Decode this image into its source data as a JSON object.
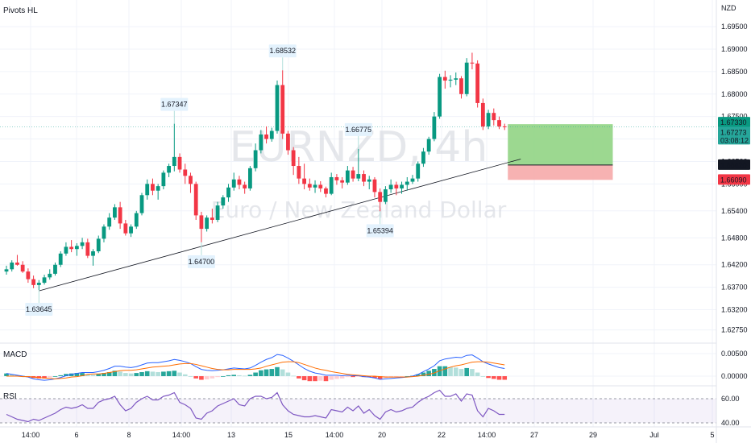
{
  "chart_data": {
    "type": "candlestick",
    "symbol": "EURNZD, 4h",
    "symbol_name": "Euro / New Zealand Dollar",
    "currency": "NZD",
    "indicator_label": "Pivots HL",
    "price_range": [
      1.626,
      1.6995
    ],
    "y_ticks": [
      "1.69500",
      "1.69000",
      "1.68500",
      "1.68000",
      "1.67500",
      "1.67000",
      "1.66500",
      "1.66000",
      "1.65400",
      "1.64800",
      "1.64200",
      "1.63700",
      "1.63200",
      "1.62750"
    ],
    "x_ticks": [
      "14:00",
      "6",
      "8",
      "14:00",
      "13",
      "15",
      "14:00",
      "20",
      "22",
      "14:00",
      "27",
      "29",
      "Jul",
      "5"
    ],
    "candles": [
      [
        1.6405,
        1.6418,
        1.6398,
        1.641
      ],
      [
        1.641,
        1.643,
        1.6405,
        1.6425
      ],
      [
        1.6425,
        1.6442,
        1.6418,
        1.642
      ],
      [
        1.642,
        1.6428,
        1.6402,
        1.6405
      ],
      [
        1.6405,
        1.6412,
        1.638,
        1.6388
      ],
      [
        1.6388,
        1.6396,
        1.6368,
        1.6375
      ],
      [
        1.6375,
        1.6386,
        1.6364,
        1.638
      ],
      [
        1.638,
        1.6398,
        1.6376,
        1.6392
      ],
      [
        1.6392,
        1.641,
        1.6387,
        1.64
      ],
      [
        1.64,
        1.6425,
        1.6396,
        1.642
      ],
      [
        1.642,
        1.645,
        1.6415,
        1.6445
      ],
      [
        1.6445,
        1.647,
        1.644,
        1.646
      ],
      [
        1.646,
        1.6475,
        1.6448,
        1.6455
      ],
      [
        1.6455,
        1.6468,
        1.644,
        1.6462
      ],
      [
        1.6462,
        1.648,
        1.6455,
        1.647
      ],
      [
        1.647,
        1.6478,
        1.6435,
        1.644
      ],
      [
        1.644,
        1.6455,
        1.6418,
        1.645
      ],
      [
        1.645,
        1.6485,
        1.6446,
        1.6478
      ],
      [
        1.6478,
        1.651,
        1.647,
        1.6505
      ],
      [
        1.6505,
        1.6535,
        1.6498,
        1.6525
      ],
      [
        1.6525,
        1.6555,
        1.652,
        1.6548
      ],
      [
        1.6548,
        1.656,
        1.65,
        1.6512
      ],
      [
        1.6512,
        1.652,
        1.6485,
        1.649
      ],
      [
        1.649,
        1.651,
        1.6482,
        1.6505
      ],
      [
        1.6505,
        1.654,
        1.65,
        1.6535
      ],
      [
        1.6535,
        1.658,
        1.653,
        1.6575
      ],
      [
        1.6575,
        1.661,
        1.6565,
        1.66
      ],
      [
        1.66,
        1.6612,
        1.6575,
        1.6585
      ],
      [
        1.6585,
        1.66,
        1.6565,
        1.6595
      ],
      [
        1.6595,
        1.663,
        1.6588,
        1.6625
      ],
      [
        1.6625,
        1.6645,
        1.6615,
        1.664
      ],
      [
        1.664,
        1.6734,
        1.6628,
        1.666
      ],
      [
        1.666,
        1.6668,
        1.6625,
        1.6632
      ],
      [
        1.6632,
        1.6645,
        1.66,
        1.6618
      ],
      [
        1.6618,
        1.6625,
        1.658,
        1.66
      ],
      [
        1.66,
        1.6605,
        1.652,
        1.653
      ],
      [
        1.653,
        1.6538,
        1.647,
        1.65
      ],
      [
        1.65,
        1.653,
        1.6494,
        1.6525
      ],
      [
        1.6525,
        1.6545,
        1.6512,
        1.652
      ],
      [
        1.652,
        1.656,
        1.6515,
        1.6552
      ],
      [
        1.6552,
        1.6575,
        1.6545,
        1.657
      ],
      [
        1.657,
        1.66,
        1.656,
        1.6592
      ],
      [
        1.6592,
        1.6625,
        1.6585,
        1.661
      ],
      [
        1.661,
        1.6618,
        1.6588,
        1.6598
      ],
      [
        1.6598,
        1.6605,
        1.6578,
        1.659
      ],
      [
        1.659,
        1.664,
        1.6585,
        1.6635
      ],
      [
        1.6635,
        1.669,
        1.6628,
        1.6675
      ],
      [
        1.6675,
        1.672,
        1.6668,
        1.671
      ],
      [
        1.671,
        1.6728,
        1.669,
        1.67
      ],
      [
        1.67,
        1.6725,
        1.6694,
        1.6718
      ],
      [
        1.6718,
        1.683,
        1.6712,
        1.682
      ],
      [
        1.682,
        1.6853,
        1.67,
        1.6712
      ],
      [
        1.6712,
        1.6718,
        1.6665,
        1.6675
      ],
      [
        1.6675,
        1.6682,
        1.662,
        1.664
      ],
      [
        1.664,
        1.666,
        1.66,
        1.6612
      ],
      [
        1.6612,
        1.6645,
        1.6588,
        1.66
      ],
      [
        1.66,
        1.6612,
        1.6585,
        1.6592
      ],
      [
        1.6592,
        1.6608,
        1.658,
        1.6598
      ],
      [
        1.6598,
        1.6606,
        1.6582,
        1.659
      ],
      [
        1.659,
        1.6594,
        1.657,
        1.6578
      ],
      [
        1.6578,
        1.6625,
        1.6575,
        1.6615
      ],
      [
        1.6615,
        1.6622,
        1.6598,
        1.6608
      ],
      [
        1.6608,
        1.6615,
        1.659,
        1.6603
      ],
      [
        1.6603,
        1.664,
        1.6598,
        1.663
      ],
      [
        1.663,
        1.6638,
        1.6605,
        1.6612
      ],
      [
        1.6612,
        1.6678,
        1.6606,
        1.6622
      ],
      [
        1.6622,
        1.663,
        1.6595,
        1.6605
      ],
      [
        1.6605,
        1.6618,
        1.6588,
        1.661
      ],
      [
        1.661,
        1.6615,
        1.657,
        1.6582
      ],
      [
        1.6582,
        1.659,
        1.6539,
        1.656
      ],
      [
        1.656,
        1.6595,
        1.6555,
        1.6588
      ],
      [
        1.6588,
        1.661,
        1.658,
        1.6598
      ],
      [
        1.6598,
        1.6605,
        1.6575,
        1.659
      ],
      [
        1.659,
        1.6605,
        1.6578,
        1.6598
      ],
      [
        1.6598,
        1.6615,
        1.6585,
        1.6605
      ],
      [
        1.6605,
        1.662,
        1.66,
        1.6612
      ],
      [
        1.6612,
        1.665,
        1.6605,
        1.6645
      ],
      [
        1.6645,
        1.668,
        1.6638,
        1.6672
      ],
      [
        1.6672,
        1.6705,
        1.6665,
        1.67
      ],
      [
        1.67,
        1.676,
        1.6695,
        1.675
      ],
      [
        1.675,
        1.6845,
        1.6745,
        1.6838
      ],
      [
        1.6838,
        1.6852,
        1.6812,
        1.683
      ],
      [
        1.683,
        1.6842,
        1.6815,
        1.6832
      ],
      [
        1.6832,
        1.6848,
        1.682,
        1.6835
      ],
      [
        1.6835,
        1.684,
        1.679,
        1.68
      ],
      [
        1.68,
        1.688,
        1.6795,
        1.687
      ],
      [
        1.687,
        1.6892,
        1.6855,
        1.6868
      ],
      [
        1.6868,
        1.6875,
        1.677,
        1.678
      ],
      [
        1.678,
        1.679,
        1.672,
        1.6728
      ],
      [
        1.6728,
        1.6765,
        1.6722,
        1.6758
      ],
      [
        1.6758,
        1.6768,
        1.673,
        1.6742
      ],
      [
        1.6742,
        1.675,
        1.6722,
        1.6728
      ],
      [
        1.6728,
        1.6734,
        1.672,
        1.6727
      ]
    ],
    "pivots": [
      {
        "label": "1.63645",
        "index": 6,
        "type": "low"
      },
      {
        "label": "1.67347",
        "index": 31,
        "type": "high"
      },
      {
        "label": "1.64700",
        "index": 36,
        "type": "low"
      },
      {
        "label": "1.68532",
        "index": 51,
        "type": "high"
      },
      {
        "label": "1.66775",
        "index": 65,
        "type": "high"
      },
      {
        "label": "1.65394",
        "index": 69,
        "type": "low"
      }
    ],
    "trendline": {
      "from": [
        6,
        1.6362
      ],
      "to": [
        92,
        1.665
      ]
    },
    "position": {
      "entry": 1.6642,
      "target": 1.6733,
      "stop": 1.6609,
      "start_index": 92,
      "end_index": 109
    },
    "price_badges": [
      {
        "text": "1.67330",
        "price": 1.6733,
        "color": "#089981"
      },
      {
        "text": "1.67273",
        "price": 1.67273,
        "color": "#26a69a",
        "sub": "03:08:12"
      },
      {
        "text": "1.66420",
        "price": 1.6642,
        "color": "#131722"
      },
      {
        "text": "1.66090",
        "price": 1.6609,
        "color": "#f23645"
      }
    ],
    "macd": {
      "label": "MACD",
      "y_ticks": [
        "0.00500",
        "0.00000"
      ],
      "range": [
        -0.0016,
        0.0066
      ],
      "histogram": [
        0.0006,
        0.0004,
        0.0002,
        0.0001,
        -0.0001,
        -0.0004,
        -0.0005,
        -0.0005,
        -0.0003,
        0.0,
        0.0002,
        0.0005,
        0.0006,
        0.0007,
        0.0007,
        0.0004,
        0.0003,
        0.0005,
        0.0007,
        0.0009,
        0.0012,
        0.001,
        0.0007,
        0.0006,
        0.0007,
        0.0009,
        0.0011,
        0.001,
        0.0009,
        0.001,
        0.0011,
        0.0012,
        0.0008,
        0.0004,
        0.0,
        -0.0005,
        -0.0008,
        -0.0007,
        -0.0005,
        -0.0002,
        0.0,
        0.0002,
        0.0003,
        0.0002,
        0.0001,
        0.0003,
        0.0008,
        0.0013,
        0.0015,
        0.0016,
        0.002,
        0.0015,
        0.0008,
        0.0001,
        -0.0005,
        -0.0009,
        -0.0011,
        -0.0011,
        -0.001,
        -0.0011,
        -0.0008,
        -0.0006,
        -0.0005,
        -0.0002,
        -0.0002,
        -0.0001,
        -0.0002,
        -0.0002,
        -0.0004,
        -0.0006,
        -0.0004,
        -0.0003,
        -0.0002,
        -0.0001,
        0.0,
        0.0001,
        0.0004,
        0.0008,
        0.0012,
        0.0016,
        0.0022,
        0.0022,
        0.002,
        0.0019,
        0.0016,
        0.0018,
        0.0016,
        0.0008,
        0.0,
        -0.0004,
        -0.0006,
        -0.0008,
        -0.0008
      ],
      "macd_line": [
        0.0006,
        0.0004,
        0.0002,
        0.0,
        -0.0002,
        -0.0006,
        -0.0008,
        -0.0009,
        -0.0008,
        -0.0006,
        -0.0003,
        0.0001,
        0.0004,
        0.0006,
        0.0008,
        0.0008,
        0.0008,
        0.001,
        0.0013,
        0.0017,
        0.0022,
        0.0022,
        0.002,
        0.0019,
        0.0021,
        0.0025,
        0.0029,
        0.003,
        0.003,
        0.0032,
        0.0034,
        0.0037,
        0.0035,
        0.0032,
        0.0028,
        0.0021,
        0.0015,
        0.0013,
        0.0012,
        0.0013,
        0.0014,
        0.0016,
        0.0018,
        0.0017,
        0.0016,
        0.0018,
        0.0024,
        0.0031,
        0.0037,
        0.0041,
        0.0048,
        0.0046,
        0.004,
        0.0033,
        0.0025,
        0.0017,
        0.0011,
        0.0007,
        0.0005,
        0.0002,
        0.0002,
        0.0002,
        0.0001,
        0.0002,
        0.0001,
        0.0001,
        -0.0001,
        -0.0002,
        -0.0004,
        -0.0007,
        -0.0006,
        -0.0005,
        -0.0004,
        -0.0003,
        -0.0002,
        0.0,
        0.0004,
        0.001,
        0.0016,
        0.0023,
        0.0034,
        0.0038,
        0.004,
        0.0042,
        0.0041,
        0.0046,
        0.0047,
        0.004,
        0.0032,
        0.0027,
        0.0023,
        0.0019,
        0.0017
      ],
      "signal_line": [
        0.0,
        0.0,
        0.0,
        -0.0001,
        -0.0001,
        -0.0002,
        -0.0003,
        -0.0004,
        -0.0005,
        -0.0006,
        -0.0005,
        -0.0004,
        -0.0002,
        -0.0001,
        0.0001,
        0.0004,
        0.0005,
        0.0005,
        0.0006,
        0.0008,
        0.001,
        0.0012,
        0.0013,
        0.0013,
        0.0014,
        0.0016,
        0.0018,
        0.002,
        0.0021,
        0.0022,
        0.0023,
        0.0025,
        0.0027,
        0.0028,
        0.0028,
        0.0026,
        0.0023,
        0.002,
        0.0017,
        0.0015,
        0.0014,
        0.0014,
        0.0015,
        0.0015,
        0.0015,
        0.0015,
        0.0016,
        0.0018,
        0.0022,
        0.0025,
        0.0028,
        0.0031,
        0.0032,
        0.0032,
        0.003,
        0.0026,
        0.0022,
        0.0018,
        0.0015,
        0.0013,
        0.001,
        0.0008,
        0.0006,
        0.0004,
        0.0003,
        0.0002,
        0.0001,
        0.0,
        0.0,
        -0.0001,
        -0.0002,
        -0.0002,
        -0.0002,
        -0.0002,
        -0.0002,
        -0.0001,
        0.0,
        0.0002,
        0.0004,
        0.0007,
        0.0012,
        0.0016,
        0.002,
        0.0023,
        0.0025,
        0.0028,
        0.0031,
        0.0032,
        0.0032,
        0.0031,
        0.0029,
        0.0027,
        0.0025
      ]
    },
    "rsi": {
      "label": "RSI",
      "y_ticks": [
        "60.00",
        "40.00"
      ],
      "range": [
        38,
        68
      ],
      "band": [
        40,
        60
      ],
      "values": [
        47,
        45,
        43,
        42,
        41,
        43,
        42,
        44,
        46,
        48,
        51,
        53,
        52,
        53,
        55,
        52,
        52,
        57,
        59,
        60,
        62,
        55,
        50,
        52,
        57,
        60,
        62,
        59,
        59,
        62,
        63,
        65,
        57,
        55,
        52,
        44,
        43,
        48,
        50,
        54,
        56,
        58,
        60,
        55,
        54,
        60,
        62,
        62,
        60,
        61,
        65,
        55,
        50,
        47,
        46,
        45,
        45,
        46,
        45,
        44,
        51,
        50,
        49,
        53,
        50,
        54,
        48,
        51,
        46,
        43,
        49,
        51,
        49,
        50,
        52,
        53,
        57,
        60,
        62,
        65,
        67,
        62,
        62,
        64,
        58,
        64,
        63,
        50,
        45,
        52,
        50,
        47,
        47
      ]
    }
  }
}
